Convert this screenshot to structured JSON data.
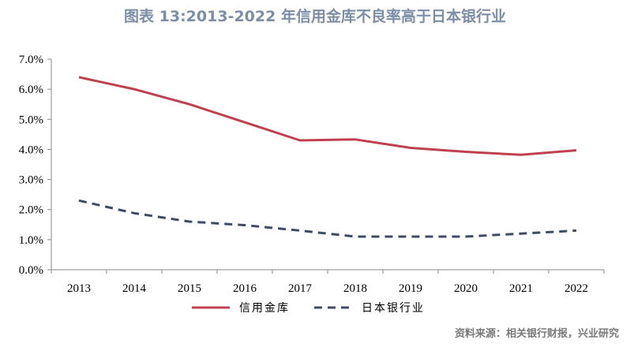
{
  "title": "图表 13:2013-2022 年信用金库不良率高于日本银行业",
  "source": "资料来源：相关银行财报，兴业研究",
  "chart_data": {
    "type": "line",
    "x": [
      "2013",
      "2014",
      "2015",
      "2016",
      "2017",
      "2018",
      "2019",
      "2020",
      "2021",
      "2022"
    ],
    "ylim": [
      0,
      7
    ],
    "yticks": [
      "0.0%",
      "1.0%",
      "2.0%",
      "3.0%",
      "4.0%",
      "5.0%",
      "6.0%",
      "7.0%"
    ],
    "grid": false,
    "legend_position": "bottom",
    "series": [
      {
        "name": "信用金库",
        "values": [
          6.4,
          6.0,
          5.5,
          4.9,
          4.3,
          4.33,
          4.05,
          3.92,
          3.82,
          3.97
        ],
        "color": "#c0404f",
        "style": "solid"
      },
      {
        "name": "日本银行业",
        "values": [
          2.3,
          1.88,
          1.6,
          1.48,
          1.3,
          1.1,
          1.1,
          1.1,
          1.2,
          1.3
        ],
        "color": "#3d4c63",
        "style": "dashed"
      }
    ]
  }
}
